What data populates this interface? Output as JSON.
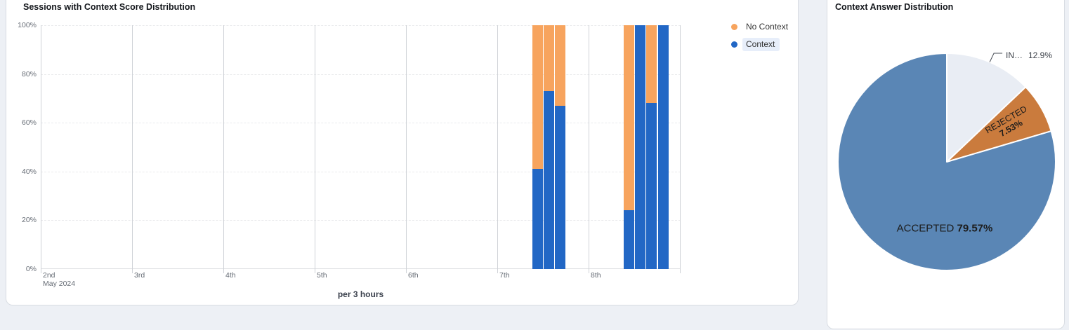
{
  "page": {
    "background": "#edf0f5"
  },
  "left_card": {
    "title": "Sessions with Context Score Distribution",
    "x_axis_title": "per 3 hours",
    "legend": {
      "items": [
        {
          "label": "No Context",
          "color": "#f7a45e",
          "highlighted": false
        },
        {
          "label": "Context",
          "color": "#2267c5",
          "highlighted": true
        }
      ]
    }
  },
  "right_card": {
    "title": "Context Answer Distribution"
  },
  "chart_data": [
    {
      "type": "bar",
      "stacking": "percent",
      "title": "Sessions with Context Score Distribution",
      "xlabel": "per 3 hours",
      "ylabel": "",
      "ylim": [
        0,
        100
      ],
      "grid": "horizontal-dashed and vertical-solid",
      "y_ticks": [
        "0%",
        "20%",
        "40%",
        "60%",
        "80%",
        "100%"
      ],
      "x_day_labels": [
        "2nd",
        "3rd",
        "4th",
        "5th",
        "6th",
        "7th",
        "8th"
      ],
      "x_first_label_sub": "May 2024",
      "bucket_hours": 3,
      "legend_position": "top-right",
      "series": [
        {
          "name": "No Context",
          "color": "#f7a45e",
          "values": [
            59,
            27,
            33,
            76,
            0,
            32,
            0
          ]
        },
        {
          "name": "Context",
          "color": "#2267c5",
          "values": [
            41,
            73,
            67,
            24,
            100,
            68,
            100
          ]
        }
      ],
      "x": [
        "May 7 09:00",
        "May 7 12:00",
        "May 7 15:00",
        "May 8 09:00",
        "May 8 12:00",
        "May 8 15:00",
        "May 8 18:00"
      ],
      "bars": [
        {
          "day_index": 5,
          "slot": 3,
          "context": 41,
          "no_context": 59
        },
        {
          "day_index": 5,
          "slot": 4,
          "context": 73,
          "no_context": 27
        },
        {
          "day_index": 5,
          "slot": 5,
          "context": 67,
          "no_context": 33
        },
        {
          "day_index": 6,
          "slot": 3,
          "context": 24,
          "no_context": 76
        },
        {
          "day_index": 6,
          "slot": 4,
          "context": 100,
          "no_context": 0
        },
        {
          "day_index": 6,
          "slot": 5,
          "context": 68,
          "no_context": 32
        },
        {
          "day_index": 6,
          "slot": 6,
          "context": 100,
          "no_context": 0
        }
      ]
    },
    {
      "type": "pie",
      "title": "Context Answer Distribution",
      "start_angle": 0,
      "slices": [
        {
          "name": "IN…",
          "pct_label": "12.9%",
          "value": 12.9,
          "color": "#e9edf4",
          "label_pos": "outside"
        },
        {
          "name": "REJECTED",
          "pct_label": "7.53%",
          "value": 7.53,
          "color": "#ca7b3d",
          "label_pos": "inside"
        },
        {
          "name": "ACCEPTED",
          "pct_label": "79.57%",
          "value": 79.57,
          "color": "#5a86b5",
          "label_pos": "inside"
        }
      ]
    }
  ]
}
